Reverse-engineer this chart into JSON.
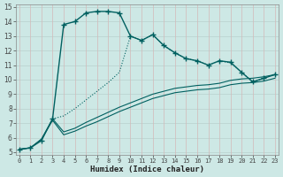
{
  "xlabel": "Humidex (Indice chaleur)",
  "bg_color": "#cde8e5",
  "grid_color_major": "#c8d8d8",
  "grid_color_minor": "#e8b8b8",
  "line_color": "#006060",
  "xlim": [
    0,
    23
  ],
  "ylim": [
    5,
    15
  ],
  "xticks": [
    0,
    1,
    2,
    3,
    4,
    5,
    6,
    7,
    8,
    9,
    10,
    11,
    12,
    13,
    14,
    15,
    16,
    17,
    18,
    19,
    20,
    21,
    22,
    23
  ],
  "yticks": [
    5,
    6,
    7,
    8,
    9,
    10,
    11,
    12,
    13,
    14,
    15
  ],
  "line1_x": [
    0,
    1,
    2,
    3,
    4,
    5,
    6,
    7,
    8,
    9,
    10,
    11,
    12,
    13,
    14,
    15,
    16,
    17,
    18,
    19,
    20,
    21,
    22,
    23
  ],
  "line1_y": [
    5.2,
    5.3,
    5.8,
    7.3,
    13.8,
    14.0,
    14.6,
    14.7,
    14.7,
    14.6,
    13.0,
    12.7,
    13.1,
    12.35,
    11.85,
    11.45,
    11.3,
    11.0,
    11.3,
    11.2,
    10.5,
    9.85,
    10.1,
    10.35
  ],
  "line2_x": [
    3,
    4,
    5,
    6,
    7,
    8,
    9,
    10,
    11,
    12,
    13,
    14,
    15,
    16,
    17,
    18,
    19,
    20,
    21,
    22,
    23
  ],
  "line2_y": [
    7.3,
    7.5,
    8.0,
    8.6,
    9.2,
    9.8,
    10.5,
    13.0,
    12.7,
    13.1,
    12.35,
    11.85,
    11.45,
    11.3,
    11.0,
    11.3,
    11.15,
    10.5,
    9.85,
    10.1,
    10.35
  ],
  "line3_x": [
    0,
    1,
    2,
    3,
    4,
    5,
    6,
    7,
    8,
    9,
    10,
    11,
    12,
    13,
    14,
    15,
    16,
    17,
    18,
    19,
    20,
    21,
    22,
    23
  ],
  "line3_y": [
    5.2,
    5.3,
    5.9,
    7.3,
    6.4,
    6.65,
    7.05,
    7.4,
    7.75,
    8.1,
    8.4,
    8.7,
    9.0,
    9.2,
    9.4,
    9.5,
    9.6,
    9.65,
    9.75,
    9.95,
    10.05,
    10.1,
    10.2,
    10.35
  ],
  "line4_x": [
    0,
    1,
    2,
    3,
    4,
    5,
    6,
    7,
    8,
    9,
    10,
    11,
    12,
    13,
    14,
    15,
    16,
    17,
    18,
    19,
    20,
    21,
    22,
    23
  ],
  "line4_y": [
    5.2,
    5.3,
    5.9,
    7.2,
    6.2,
    6.45,
    6.8,
    7.1,
    7.45,
    7.8,
    8.1,
    8.4,
    8.7,
    8.9,
    9.1,
    9.2,
    9.3,
    9.35,
    9.45,
    9.65,
    9.75,
    9.8,
    9.9,
    10.1
  ]
}
